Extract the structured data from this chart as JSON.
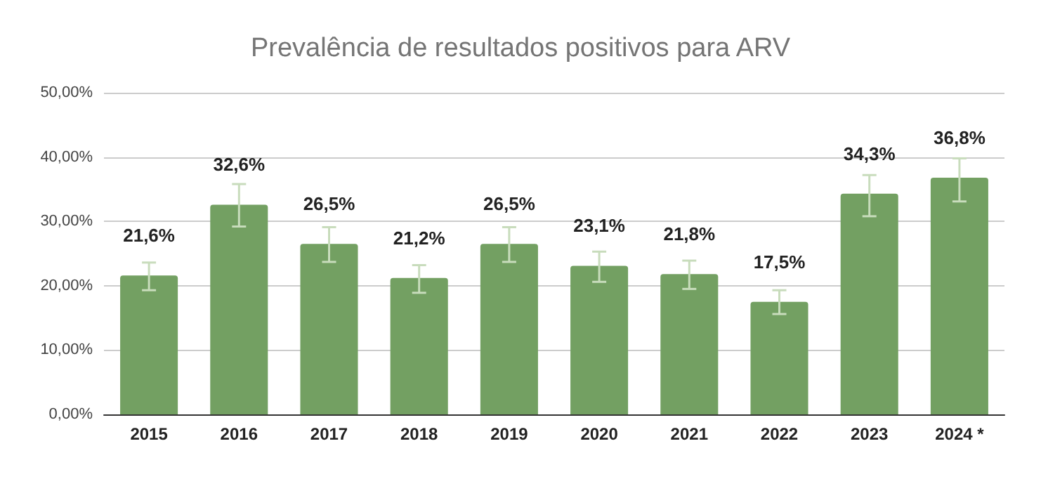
{
  "chart_data": {
    "type": "bar",
    "title": "Prevalência de resultados positivos para ARV",
    "categories": [
      "2015",
      "2016",
      "2017",
      "2018",
      "2019",
      "2020",
      "2021",
      "2022",
      "2023",
      "2024 *"
    ],
    "values": [
      21.6,
      32.6,
      26.5,
      21.2,
      26.5,
      23.1,
      21.8,
      17.5,
      34.3,
      36.8
    ],
    "value_labels": [
      "21,6%",
      "32,6%",
      "26,5%",
      "21,2%",
      "26,5%",
      "23,1%",
      "21,8%",
      "17,5%",
      "34,3%",
      "36,8%"
    ],
    "errors": [
      [
        19.3,
        23.6
      ],
      [
        29.2,
        35.8
      ],
      [
        23.7,
        29.1
      ],
      [
        18.9,
        23.2
      ],
      [
        23.7,
        29.1
      ],
      [
        20.6,
        25.3
      ],
      [
        19.5,
        23.9
      ],
      [
        15.6,
        19.3
      ],
      [
        30.8,
        37.2
      ],
      [
        33.1,
        39.8
      ]
    ],
    "color": "#73a062",
    "ylim": [
      0,
      50
    ],
    "yticks": [
      {
        "value": 0,
        "label": "0,00%"
      },
      {
        "value": 10,
        "label": "10,00%"
      },
      {
        "value": 20,
        "label": "20,00%"
      },
      {
        "value": 30,
        "label": "30,00%"
      },
      {
        "value": 40,
        "label": "40,00%"
      },
      {
        "value": 50,
        "label": "50,00%"
      }
    ],
    "grid": "y"
  }
}
